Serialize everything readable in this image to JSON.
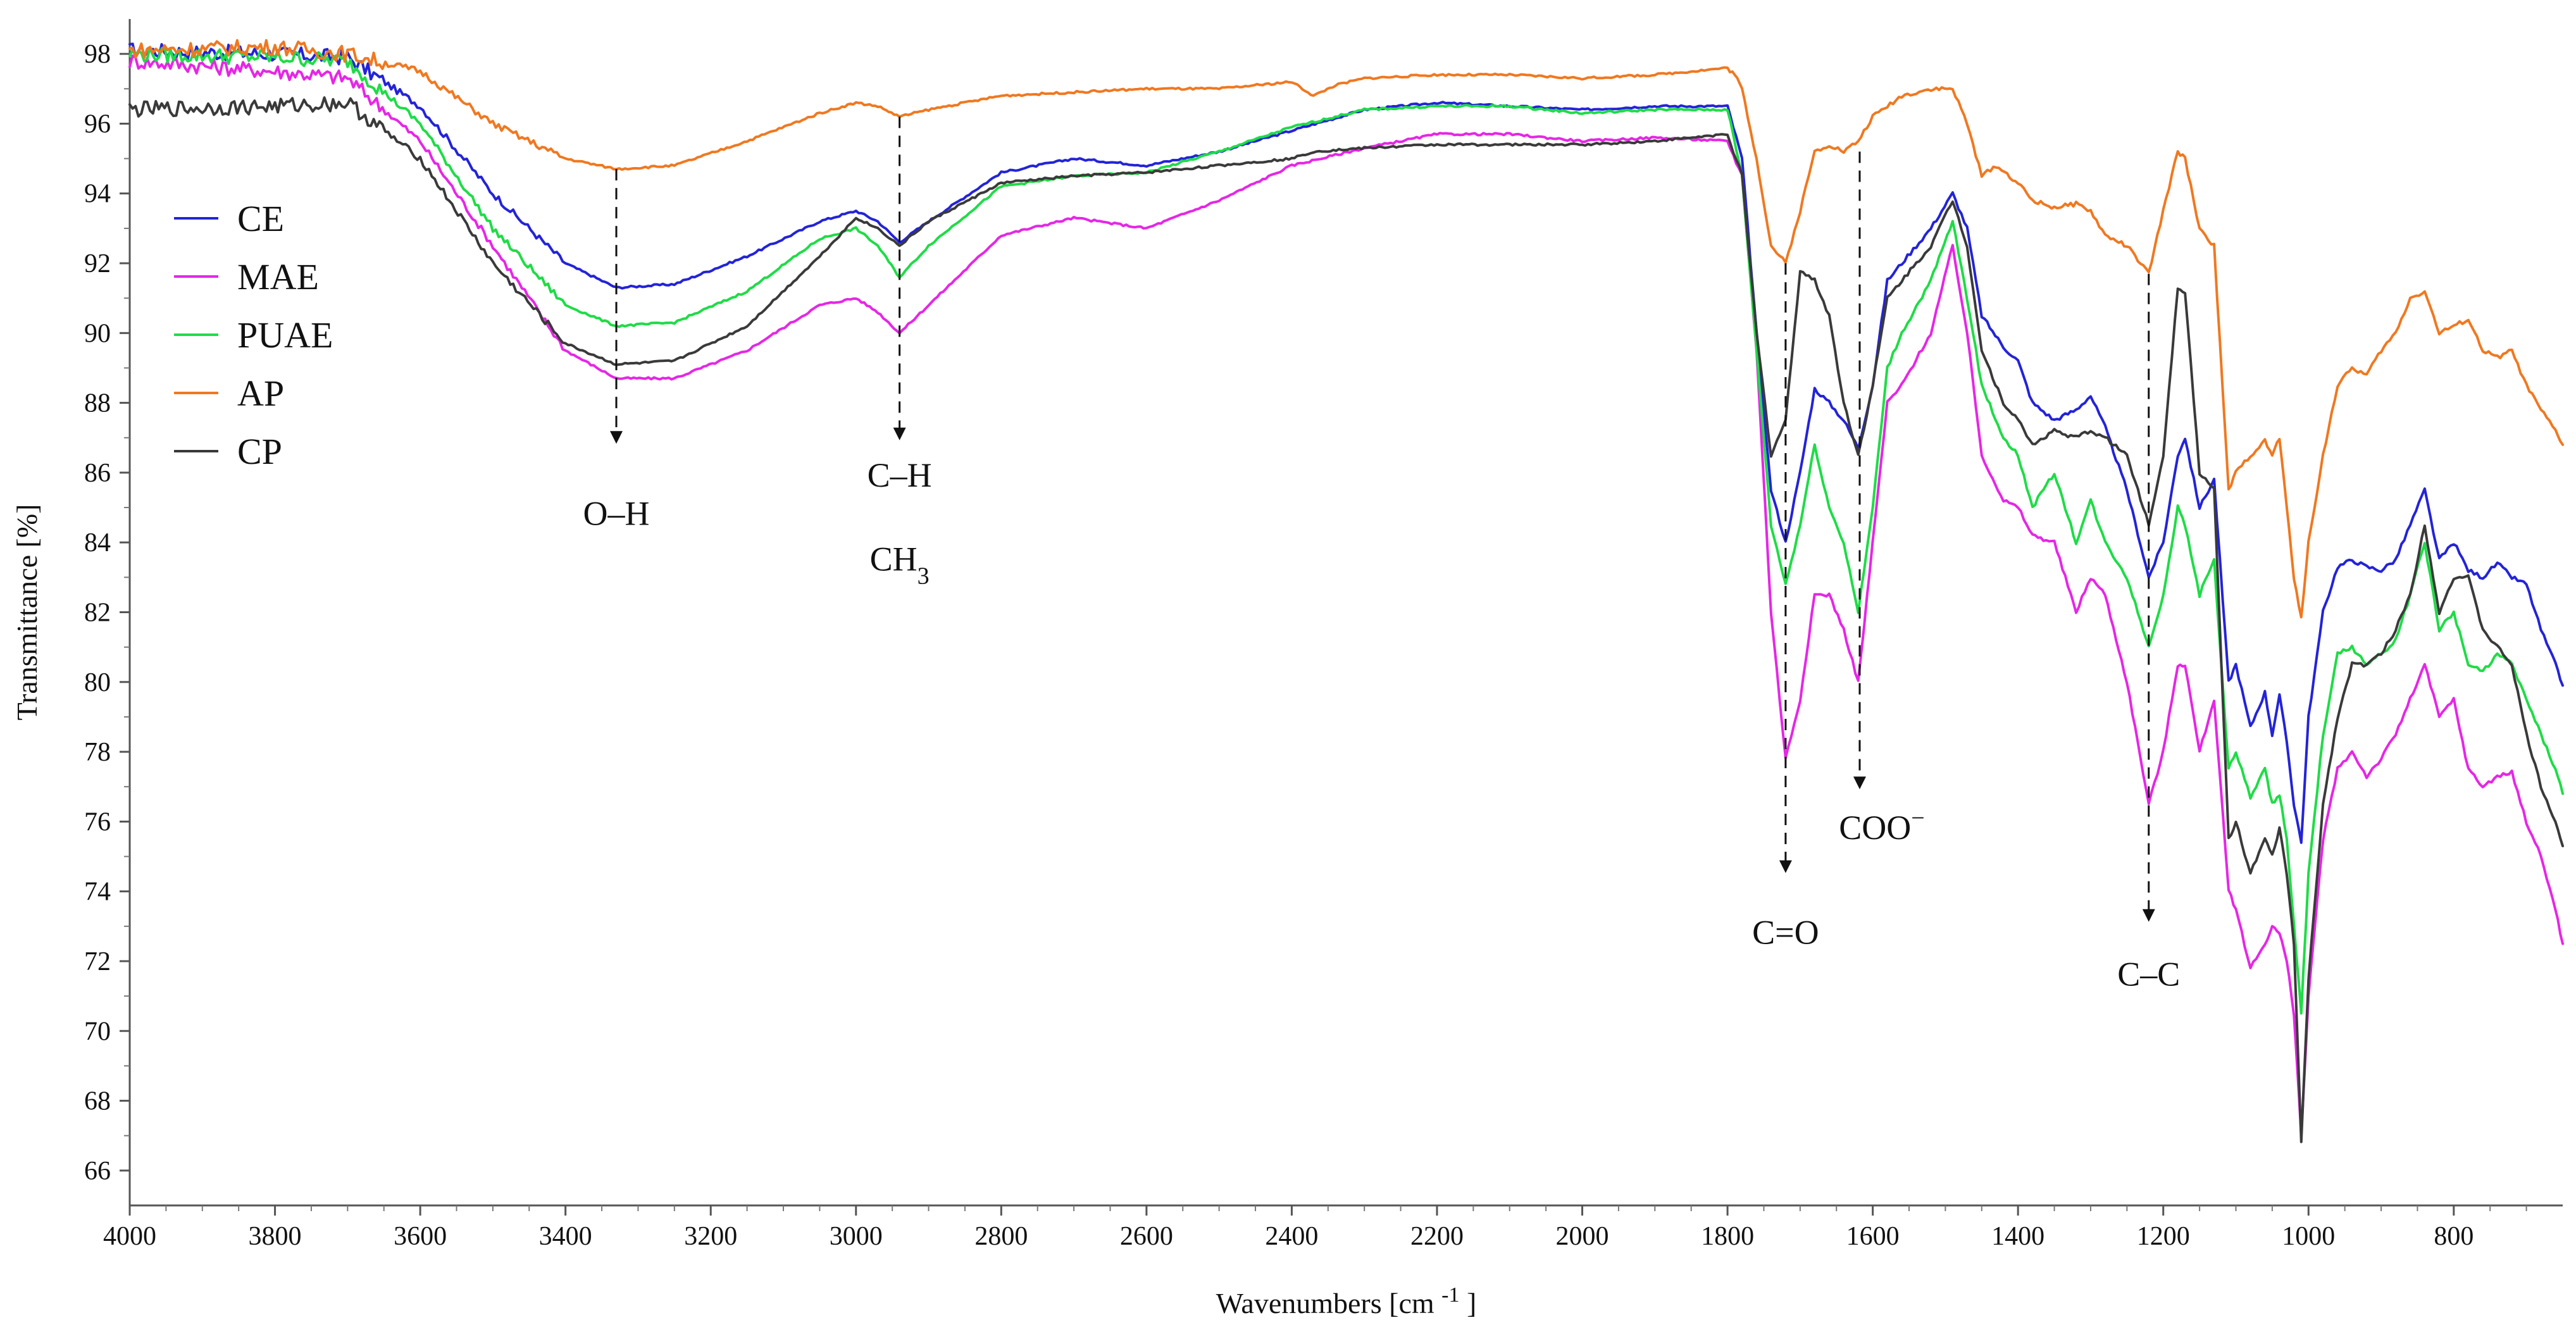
{
  "chart_data": {
    "type": "line",
    "title": "",
    "xlabel": "Wavenumbers [cm",
    "xlabel_sup": "-1",
    "xlabel_close": "]",
    "ylabel": "Transmittance [%]",
    "xlim": [
      4000,
      650
    ],
    "ylim": [
      65,
      99
    ],
    "x_reversed": true,
    "x_ticks": [
      4000,
      3800,
      3600,
      3400,
      3200,
      3000,
      2800,
      2600,
      2400,
      2200,
      2000,
      1800,
      1600,
      1400,
      1200,
      1000,
      800
    ],
    "y_ticks": [
      66,
      68,
      70,
      72,
      74,
      76,
      78,
      80,
      82,
      84,
      86,
      88,
      90,
      92,
      94,
      96,
      98
    ],
    "grid": false,
    "legend_position": "top-left",
    "series": [
      {
        "name": "CE",
        "color": "#2323d9",
        "x": [
          4000,
          3800,
          3700,
          3600,
          3500,
          3400,
          3330,
          3250,
          3150,
          3050,
          3000,
          2970,
          2940,
          2900,
          2800,
          2700,
          2600,
          2500,
          2400,
          2300,
          2200,
          2100,
          2000,
          1900,
          1800,
          1780,
          1760,
          1740,
          1720,
          1700,
          1680,
          1660,
          1640,
          1620,
          1600,
          1580,
          1560,
          1520,
          1490,
          1470,
          1450,
          1420,
          1400,
          1380,
          1350,
          1320,
          1300,
          1280,
          1250,
          1220,
          1200,
          1180,
          1170,
          1150,
          1130,
          1110,
          1100,
          1080,
          1060,
          1050,
          1040,
          1030,
          1020,
          1010,
          1000,
          980,
          960,
          940,
          920,
          900,
          880,
          860,
          840,
          820,
          800,
          780,
          760,
          740,
          720,
          700,
          680,
          660,
          650
        ],
        "y": [
          98.1,
          98.0,
          97.9,
          96.5,
          94.0,
          92.0,
          91.3,
          91.4,
          92.2,
          93.2,
          93.5,
          93.2,
          92.6,
          93.2,
          94.6,
          95.0,
          94.8,
          95.2,
          95.8,
          96.4,
          96.6,
          96.5,
          96.4,
          96.5,
          96.5,
          95.0,
          90.0,
          85.5,
          84.0,
          86.0,
          88.4,
          88.0,
          87.5,
          86.7,
          88.5,
          91.5,
          92.0,
          93.0,
          94.0,
          93.0,
          90.5,
          89.6,
          89.2,
          88.0,
          87.5,
          87.8,
          88.2,
          87.3,
          85.5,
          83.0,
          84.0,
          86.5,
          87.0,
          85.0,
          85.8,
          80.0,
          80.5,
          78.7,
          79.7,
          78.5,
          79.6,
          78.3,
          76.5,
          75.4,
          79.0,
          82.0,
          83.3,
          83.5,
          83.3,
          83.2,
          83.5,
          84.5,
          85.5,
          83.5,
          84.0,
          83.2,
          83.0,
          83.4,
          83.0,
          82.8,
          81.5,
          80.5,
          79.9
        ]
      },
      {
        "name": "MAE",
        "color": "#e626e6",
        "x": [
          4000,
          3800,
          3700,
          3600,
          3500,
          3400,
          3330,
          3250,
          3150,
          3050,
          3000,
          2970,
          2940,
          2900,
          2800,
          2700,
          2600,
          2500,
          2400,
          2300,
          2200,
          2100,
          2000,
          1900,
          1800,
          1780,
          1760,
          1740,
          1720,
          1700,
          1680,
          1660,
          1640,
          1620,
          1600,
          1580,
          1560,
          1520,
          1490,
          1470,
          1450,
          1420,
          1400,
          1380,
          1350,
          1320,
          1300,
          1280,
          1250,
          1220,
          1200,
          1180,
          1170,
          1150,
          1130,
          1110,
          1100,
          1080,
          1060,
          1050,
          1040,
          1030,
          1020,
          1010,
          1000,
          980,
          960,
          940,
          920,
          900,
          880,
          860,
          840,
          820,
          800,
          780,
          760,
          740,
          720,
          700,
          680,
          660,
          650
        ],
        "y": [
          97.8,
          97.5,
          97.3,
          95.5,
          92.5,
          89.5,
          88.7,
          88.7,
          89.5,
          90.8,
          91.0,
          90.6,
          90.0,
          90.8,
          92.8,
          93.3,
          93.0,
          93.8,
          94.8,
          95.3,
          95.7,
          95.7,
          95.5,
          95.6,
          95.5,
          94.5,
          89.5,
          82.0,
          77.8,
          79.5,
          82.5,
          82.5,
          81.5,
          80.0,
          84.0,
          88.0,
          88.5,
          90.0,
          92.5,
          90.0,
          86.5,
          85.2,
          85.0,
          84.2,
          84.0,
          82.0,
          83.0,
          82.5,
          80.0,
          76.5,
          78.0,
          80.5,
          80.5,
          78.0,
          79.5,
          74.0,
          73.5,
          71.8,
          72.5,
          73.0,
          72.8,
          72.0,
          70.5,
          67.0,
          71.0,
          75.5,
          77.5,
          78.0,
          77.3,
          77.8,
          78.5,
          79.5,
          80.5,
          79.0,
          79.5,
          77.5,
          77.0,
          77.3,
          77.4,
          76.0,
          75.0,
          73.5,
          72.5
        ]
      },
      {
        "name": "PUAE",
        "color": "#1edc46",
        "x": [
          4000,
          3800,
          3700,
          3600,
          3500,
          3400,
          3330,
          3250,
          3150,
          3050,
          3000,
          2970,
          2940,
          2900,
          2800,
          2700,
          2600,
          2500,
          2400,
          2300,
          2200,
          2100,
          2000,
          1900,
          1800,
          1780,
          1760,
          1740,
          1720,
          1700,
          1680,
          1660,
          1640,
          1620,
          1600,
          1580,
          1560,
          1520,
          1490,
          1470,
          1450,
          1420,
          1400,
          1380,
          1350,
          1320,
          1300,
          1280,
          1250,
          1220,
          1200,
          1180,
          1170,
          1150,
          1130,
          1110,
          1100,
          1080,
          1060,
          1050,
          1040,
          1030,
          1020,
          1010,
          1000,
          980,
          960,
          940,
          920,
          900,
          880,
          860,
          840,
          820,
          800,
          780,
          760,
          740,
          720,
          700,
          680,
          660,
          650
        ],
        "y": [
          98.0,
          97.9,
          97.8,
          96.0,
          93.0,
          90.8,
          90.2,
          90.3,
          91.2,
          92.7,
          93.0,
          92.5,
          91.6,
          92.5,
          94.2,
          94.5,
          94.6,
          95.2,
          95.9,
          96.4,
          96.5,
          96.5,
          96.3,
          96.4,
          96.4,
          94.5,
          89.5,
          84.5,
          82.8,
          84.5,
          86.8,
          85.0,
          84.0,
          82.0,
          85.0,
          89.0,
          90.0,
          91.5,
          93.2,
          91.0,
          88.5,
          87.0,
          86.5,
          85.0,
          86.0,
          84.0,
          85.2,
          84.0,
          83.0,
          81.0,
          82.5,
          85.0,
          84.5,
          82.5,
          83.5,
          77.5,
          78.0,
          76.7,
          77.5,
          76.5,
          76.8,
          75.5,
          73.0,
          70.5,
          74.5,
          78.5,
          80.8,
          81.0,
          80.5,
          80.8,
          81.2,
          82.5,
          84.0,
          81.5,
          82.0,
          80.5,
          80.3,
          80.8,
          80.5,
          79.5,
          78.5,
          77.5,
          76.8
        ]
      },
      {
        "name": "AP",
        "color": "#f07820",
        "x": [
          4000,
          3800,
          3700,
          3600,
          3500,
          3400,
          3330,
          3250,
          3150,
          3050,
          3000,
          2970,
          2940,
          2900,
          2800,
          2700,
          2600,
          2500,
          2400,
          2370,
          2340,
          2300,
          2200,
          2100,
          2000,
          1900,
          1800,
          1790,
          1780,
          1760,
          1740,
          1720,
          1700,
          1680,
          1660,
          1640,
          1620,
          1600,
          1580,
          1560,
          1520,
          1490,
          1470,
          1450,
          1430,
          1400,
          1380,
          1350,
          1320,
          1300,
          1280,
          1250,
          1220,
          1200,
          1180,
          1170,
          1150,
          1130,
          1110,
          1100,
          1080,
          1060,
          1050,
          1040,
          1030,
          1020,
          1010,
          1000,
          980,
          960,
          940,
          920,
          900,
          880,
          860,
          840,
          820,
          800,
          780,
          760,
          740,
          720,
          700,
          680,
          660,
          650
        ],
        "y": [
          98.1,
          98.2,
          98.0,
          97.5,
          96.0,
          95.0,
          94.7,
          94.8,
          95.5,
          96.3,
          96.6,
          96.5,
          96.2,
          96.4,
          96.8,
          96.9,
          97.0,
          97.0,
          97.2,
          96.8,
          97.1,
          97.3,
          97.4,
          97.4,
          97.3,
          97.4,
          97.6,
          97.4,
          97.0,
          95.0,
          92.5,
          92.0,
          93.5,
          95.2,
          95.4,
          95.2,
          95.5,
          96.2,
          96.5,
          96.8,
          97.0,
          97.0,
          96.0,
          94.5,
          94.8,
          94.3,
          93.8,
          93.6,
          93.7,
          93.5,
          92.8,
          92.5,
          91.7,
          93.5,
          95.2,
          95.0,
          93.0,
          92.5,
          85.5,
          86.0,
          86.5,
          86.9,
          86.5,
          87.0,
          85.0,
          83.0,
          81.8,
          84.0,
          86.5,
          88.5,
          89.0,
          88.8,
          89.5,
          90.0,
          91.0,
          91.2,
          90.0,
          90.2,
          90.4,
          89.5,
          89.3,
          89.5,
          88.5,
          87.8,
          87.2,
          86.8
        ]
      },
      {
        "name": "CP",
        "color": "#3a3a3a",
        "x": [
          4000,
          3800,
          3700,
          3600,
          3500,
          3400,
          3330,
          3250,
          3150,
          3050,
          3000,
          2970,
          2940,
          2900,
          2800,
          2700,
          2600,
          2500,
          2400,
          2370,
          2300,
          2200,
          2100,
          2000,
          1900,
          1800,
          1780,
          1760,
          1740,
          1720,
          1700,
          1680,
          1660,
          1640,
          1620,
          1600,
          1580,
          1560,
          1520,
          1490,
          1470,
          1450,
          1420,
          1400,
          1380,
          1350,
          1320,
          1300,
          1280,
          1250,
          1220,
          1200,
          1180,
          1170,
          1150,
          1130,
          1110,
          1100,
          1080,
          1060,
          1050,
          1040,
          1030,
          1020,
          1010,
          1000,
          980,
          960,
          940,
          920,
          900,
          880,
          860,
          840,
          820,
          800,
          780,
          760,
          740,
          720,
          700,
          680,
          660,
          650
        ],
        "y": [
          96.4,
          96.5,
          96.6,
          95.0,
          92.0,
          89.7,
          89.1,
          89.2,
          90.2,
          92.2,
          93.3,
          93.0,
          92.5,
          93.2,
          94.3,
          94.5,
          94.6,
          94.8,
          95.0,
          95.2,
          95.3,
          95.4,
          95.4,
          95.4,
          95.5,
          95.7,
          94.5,
          90.0,
          86.5,
          87.5,
          91.8,
          91.5,
          90.5,
          88.0,
          86.5,
          88.5,
          91.0,
          91.5,
          92.5,
          93.8,
          92.5,
          89.5,
          88.0,
          87.5,
          86.8,
          87.2,
          87.0,
          87.2,
          87.0,
          86.5,
          84.5,
          86.5,
          91.3,
          91.2,
          86.0,
          85.5,
          75.5,
          76.0,
          74.5,
          75.5,
          75.0,
          75.8,
          74.5,
          72.5,
          66.8,
          71.5,
          76.5,
          79.0,
          80.5,
          80.5,
          80.8,
          81.5,
          82.5,
          84.5,
          82.0,
          83.0,
          83.0,
          81.5,
          81.0,
          80.5,
          78.5,
          77.0,
          76.0,
          75.3
        ]
      }
    ],
    "annotations": [
      {
        "label": "O–H",
        "x": 3330,
        "y_from": 94.7,
        "y_to": 86.9,
        "text_y": 84.5
      },
      {
        "label": "C–H",
        "label2": "CH",
        "label2_sub": "3",
        "x": 2940,
        "y_from": 96.2,
        "y_to": 87.0,
        "text_y": 85.6,
        "text2_y": 83.2
      },
      {
        "label": "C=O",
        "x": 1720,
        "y_from": 92.0,
        "y_to": 74.6,
        "text_y": 72.5
      },
      {
        "label": "COO",
        "label_sup": "−",
        "x": 1618,
        "y_from": 95.2,
        "y_to": 77.0,
        "text_y": 75.5,
        "text_dx": 35
      },
      {
        "label": "C–C",
        "x": 1220,
        "y_from": 91.7,
        "y_to": 73.2,
        "text_y": 71.3
      }
    ]
  }
}
